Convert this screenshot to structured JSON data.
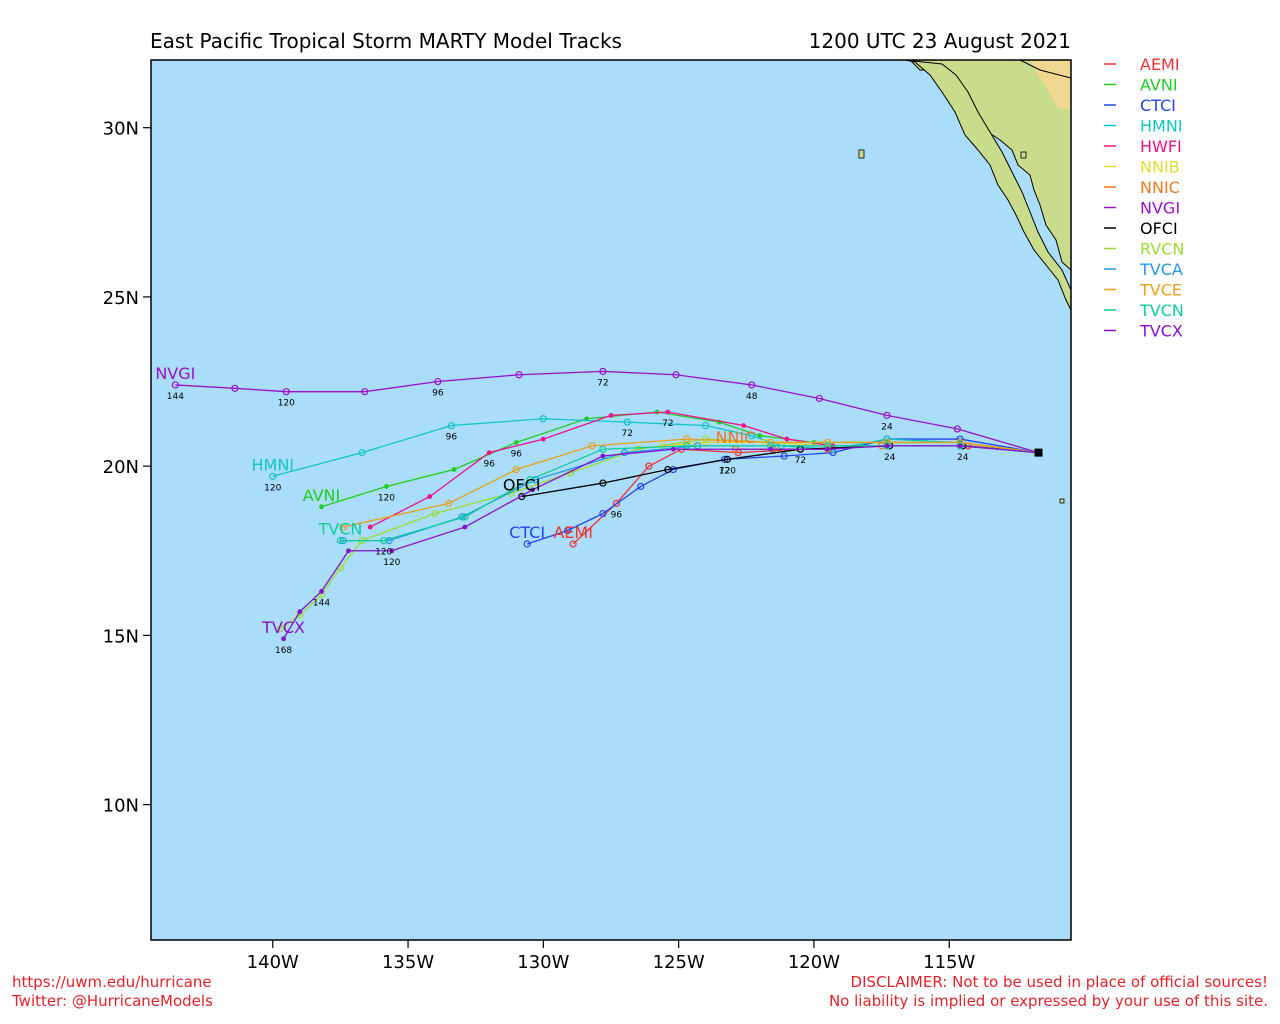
{
  "header": {
    "title": "East Pacific Tropical Storm MARTY Model Tracks",
    "datetime": "1200 UTC 23 August 2021"
  },
  "footer": {
    "left_line1": "https://uwm.edu/hurricane",
    "left_line2": "Twitter: @HurricaneModels",
    "right_line1": "DISCLAIMER: Not to be used in place of official sources!",
    "right_line2": "No liability is implied or expressed by your use of this site."
  },
  "colors": {
    "ocean": "#aaddfa",
    "land": "#c8dc8c",
    "land_dark": "#f0d890",
    "frame": "#000000"
  },
  "chart_data": {
    "type": "line",
    "title": "East Pacific Tropical Storm MARTY Model Tracks",
    "subtitle": "1200 UTC 23 August 2021",
    "xlim": [
      -144.5,
      -110.5
    ],
    "ylim": [
      6,
      32
    ],
    "xticks": [
      -140,
      -135,
      -130,
      -125,
      -120,
      -115
    ],
    "xtick_labels": [
      "140W",
      "135W",
      "130W",
      "125W",
      "120W",
      "115W"
    ],
    "yticks": [
      10,
      15,
      20,
      25,
      30
    ],
    "ytick_labels": [
      "10N",
      "15N",
      "20N",
      "25N",
      "30N"
    ],
    "grid": false,
    "legend_position": "right",
    "start": [
      -111.7,
      20.4
    ],
    "series": [
      {
        "name": "AEMI",
        "color": "#ee3333",
        "marker": "open",
        "points": [
          [
            -111.7,
            20.4
          ],
          [
            -114.3,
            20.6
          ],
          [
            -117.3,
            20.6
          ],
          [
            -120.5,
            20.5
          ],
          [
            -122.8,
            20.4
          ],
          [
            -124.9,
            20.5
          ],
          [
            -126.1,
            20.0
          ],
          [
            -127.3,
            18.9
          ],
          [
            -128.9,
            17.7
          ]
        ],
        "hours": [
          {
            "h": "96",
            "i": 7
          }
        ],
        "end_label": "AEMI"
      },
      {
        "name": "AVNI",
        "color": "#22cc22",
        "marker": "solid",
        "points": [
          [
            -111.7,
            20.4
          ],
          [
            -114.6,
            20.7
          ],
          [
            -117.3,
            20.7
          ],
          [
            -120.0,
            20.7
          ],
          [
            -122.0,
            20.9
          ],
          [
            -123.5,
            21.3
          ],
          [
            -125.8,
            21.6
          ],
          [
            -128.4,
            21.4
          ],
          [
            -131.0,
            20.7
          ],
          [
            -133.3,
            19.9
          ],
          [
            -135.8,
            19.4
          ],
          [
            -138.2,
            18.8
          ]
        ],
        "hours": [
          {
            "h": "96",
            "i": 8
          },
          {
            "h": "120",
            "i": 10
          }
        ],
        "end_label": "AVNI"
      },
      {
        "name": "CTCI",
        "color": "#2244ee",
        "marker": "open",
        "points": [
          [
            -111.7,
            20.4
          ],
          [
            -114.6,
            20.8
          ],
          [
            -117.3,
            20.8
          ],
          [
            -119.3,
            20.4
          ],
          [
            -121.1,
            20.3
          ],
          [
            -123.3,
            20.2
          ],
          [
            -125.2,
            19.9
          ],
          [
            -126.4,
            19.4
          ],
          [
            -127.8,
            18.6
          ],
          [
            -129.1,
            18.1
          ],
          [
            -130.6,
            17.7
          ]
        ],
        "hours": [
          {
            "h": "72",
            "i": 5
          }
        ],
        "end_label": "CTCI"
      },
      {
        "name": "HMNI",
        "color": "#11c4c4",
        "marker": "open",
        "points": [
          [
            -111.7,
            20.4
          ],
          [
            -114.6,
            20.7
          ],
          [
            -117.3,
            20.8
          ],
          [
            -119.3,
            20.5
          ],
          [
            -121.2,
            20.6
          ],
          [
            -122.3,
            20.9
          ],
          [
            -124.0,
            21.2
          ],
          [
            -126.9,
            21.3
          ],
          [
            -130.0,
            21.4
          ],
          [
            -133.4,
            21.2
          ],
          [
            -136.7,
            20.4
          ],
          [
            -140.0,
            19.7
          ]
        ],
        "hours": [
          {
            "h": "72",
            "i": 7
          },
          {
            "h": "96",
            "i": 9
          },
          {
            "h": "120",
            "i": 11
          }
        ],
        "end_label": "HMNI"
      },
      {
        "name": "HWFI",
        "color": "#ee1188",
        "marker": "solid",
        "points": [
          [
            -111.7,
            20.4
          ],
          [
            -114.6,
            20.6
          ],
          [
            -117.3,
            20.6
          ],
          [
            -119.3,
            20.6
          ],
          [
            -121.0,
            20.8
          ],
          [
            -122.6,
            21.2
          ],
          [
            -125.4,
            21.6
          ],
          [
            -127.5,
            21.5
          ],
          [
            -130.0,
            20.8
          ],
          [
            -132.0,
            20.4
          ],
          [
            -134.2,
            19.1
          ],
          [
            -136.4,
            18.2
          ]
        ],
        "hours": [
          {
            "h": "72",
            "i": 6
          },
          {
            "h": "96",
            "i": 9
          }
        ],
        "end_label": ""
      },
      {
        "name": "NNIB",
        "color": "#dddd33",
        "marker": "open",
        "points": [
          [
            -111.7,
            20.4
          ],
          [
            -114.6,
            20.6
          ],
          [
            -117.5,
            20.6
          ],
          [
            -119.5,
            20.6
          ],
          [
            -121.8,
            20.7
          ],
          [
            -124.0,
            20.7
          ],
          [
            -125.6,
            20.6
          ]
        ],
        "hours": [],
        "end_label": ""
      },
      {
        "name": "NNIC",
        "color": "#ee7722",
        "marker": "open",
        "points": [
          [
            -111.7,
            20.4
          ],
          [
            -114.6,
            20.6
          ],
          [
            -117.5,
            20.6
          ],
          [
            -119.5,
            20.5
          ],
          [
            -121.5,
            20.5
          ],
          [
            -122.9,
            20.5
          ]
        ],
        "hours": [],
        "end_label": "NNIC"
      },
      {
        "name": "NVGI",
        "color": "#9911cc",
        "marker": "open",
        "points": [
          [
            -111.7,
            20.4
          ],
          [
            -114.7,
            21.1
          ],
          [
            -117.3,
            21.5
          ],
          [
            -119.8,
            22.0
          ],
          [
            -122.3,
            22.4
          ],
          [
            -125.1,
            22.7
          ],
          [
            -127.8,
            22.8
          ],
          [
            -130.9,
            22.7
          ],
          [
            -133.9,
            22.5
          ],
          [
            -136.6,
            22.2
          ],
          [
            -139.5,
            22.2
          ],
          [
            -141.4,
            22.3
          ],
          [
            -143.6,
            22.4
          ]
        ],
        "hours": [
          {
            "h": "24",
            "i": 2
          },
          {
            "h": "48",
            "i": 4
          },
          {
            "h": "72",
            "i": 6
          },
          {
            "h": "96",
            "i": 8
          },
          {
            "h": "120",
            "i": 10
          },
          {
            "h": "144",
            "i": 12
          }
        ],
        "end_label": "NVGI"
      },
      {
        "name": "OFCI",
        "color": "#000000",
        "marker": "open",
        "points": [
          [
            -111.7,
            20.4
          ],
          [
            -114.5,
            20.6
          ],
          [
            -117.2,
            20.6
          ],
          [
            -120.5,
            20.5
          ],
          [
            -123.2,
            20.2
          ],
          [
            -125.4,
            19.9
          ],
          [
            -127.8,
            19.5
          ],
          [
            -130.8,
            19.1
          ]
        ],
        "hours": [
          {
            "h": "24",
            "i": 1
          },
          {
            "h": "24",
            "i": 2
          },
          {
            "h": "72",
            "i": 3
          },
          {
            "h": "120",
            "i": 4
          }
        ],
        "end_label": "OFCI"
      },
      {
        "name": "RVCN",
        "color": "#99dd33",
        "marker": "open",
        "points": [
          [
            -111.7,
            20.4
          ],
          [
            -114.6,
            20.7
          ],
          [
            -117.3,
            20.7
          ],
          [
            -119.5,
            20.7
          ],
          [
            -121.6,
            20.7
          ],
          [
            -124.0,
            20.8
          ],
          [
            -126.5,
            20.5
          ],
          [
            -129.0,
            19.8
          ],
          [
            -131.2,
            19.2
          ],
          [
            -134.0,
            18.6
          ],
          [
            -136.7,
            17.8
          ],
          [
            -137.5,
            17.0
          ],
          [
            -138.2,
            16.2
          ],
          [
            -139.0,
            15.6
          ],
          [
            -139.7,
            15.2
          ]
        ],
        "hours": [],
        "end_label": ""
      },
      {
        "name": "TVCA",
        "color": "#2299ee",
        "marker": "open",
        "points": [
          [
            -111.7,
            20.4
          ],
          [
            -114.6,
            20.6
          ],
          [
            -117.3,
            20.6
          ],
          [
            -119.5,
            20.6
          ],
          [
            -121.6,
            20.6
          ],
          [
            -124.3,
            20.6
          ],
          [
            -127.0,
            20.4
          ],
          [
            -130.3,
            19.6
          ],
          [
            -133.0,
            18.5
          ],
          [
            -135.7,
            17.8
          ],
          [
            -137.4,
            17.8
          ]
        ],
        "hours": [],
        "end_label": ""
      },
      {
        "name": "TVCE",
        "color": "#e8a020",
        "marker": "open",
        "points": [
          [
            -111.7,
            20.4
          ],
          [
            -114.6,
            20.7
          ],
          [
            -117.3,
            20.7
          ],
          [
            -119.5,
            20.7
          ],
          [
            -121.6,
            20.7
          ],
          [
            -124.7,
            20.8
          ],
          [
            -128.2,
            20.6
          ],
          [
            -131.0,
            19.9
          ],
          [
            -133.5,
            18.9
          ],
          [
            -137.4,
            18.2
          ]
        ],
        "hours": [],
        "end_label": ""
      },
      {
        "name": "TVCN",
        "color": "#11cc99",
        "marker": "open",
        "points": [
          [
            -111.7,
            20.4
          ],
          [
            -114.6,
            20.6
          ],
          [
            -117.3,
            20.6
          ],
          [
            -119.5,
            20.6
          ],
          [
            -121.6,
            20.6
          ],
          [
            -124.7,
            20.6
          ],
          [
            -127.8,
            20.5
          ],
          [
            -130.5,
            19.6
          ],
          [
            -132.9,
            18.5
          ],
          [
            -135.9,
            17.8
          ],
          [
            -137.5,
            17.8
          ]
        ],
        "hours": [
          {
            "h": "120",
            "i": 9
          }
        ],
        "end_label": "TVCN"
      },
      {
        "name": "TVCX",
        "color": "#8811cc",
        "marker": "solid",
        "points": [
          [
            -111.7,
            20.4
          ],
          [
            -114.6,
            20.6
          ],
          [
            -117.3,
            20.6
          ],
          [
            -119.5,
            20.5
          ],
          [
            -121.6,
            20.5
          ],
          [
            -125.2,
            20.5
          ],
          [
            -127.8,
            20.3
          ],
          [
            -130.4,
            19.3
          ],
          [
            -132.9,
            18.2
          ],
          [
            -135.6,
            17.5
          ],
          [
            -137.2,
            17.5
          ],
          [
            -138.2,
            16.3
          ],
          [
            -139.0,
            15.7
          ],
          [
            -139.6,
            14.9
          ]
        ],
        "hours": [
          {
            "h": "120",
            "i": 9
          },
          {
            "h": "144",
            "i": 11
          },
          {
            "h": "168",
            "i": 13
          }
        ],
        "end_label": "TVCX"
      }
    ]
  }
}
